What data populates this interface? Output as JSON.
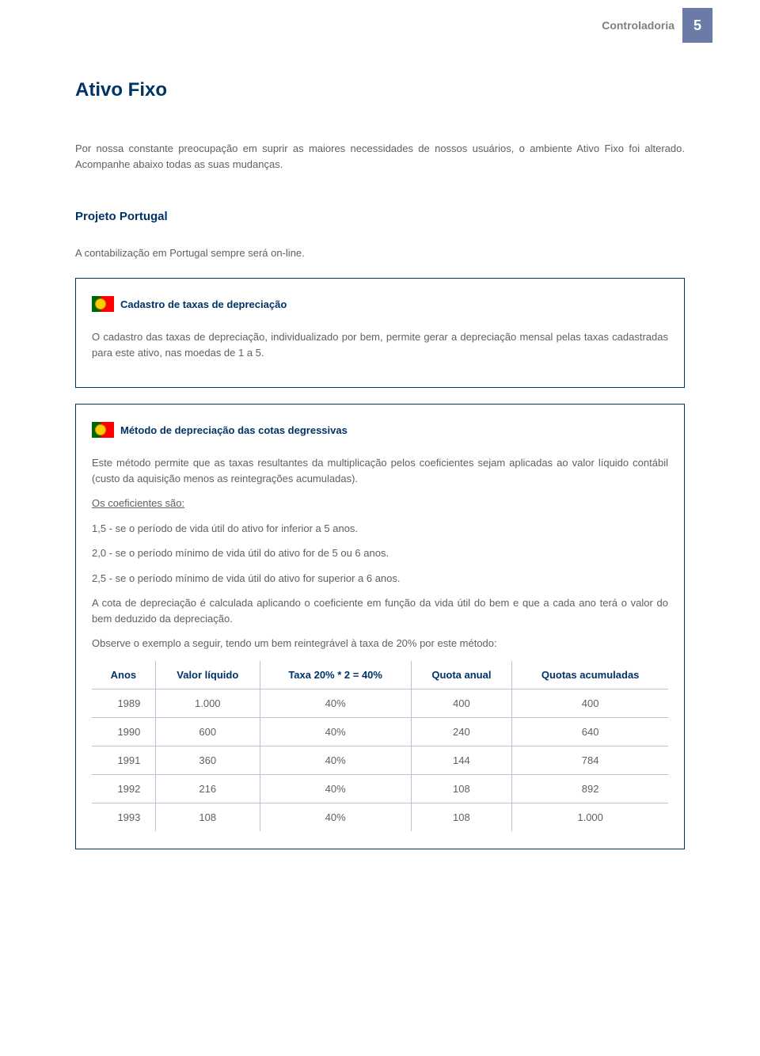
{
  "header": {
    "label": "Controladoria",
    "page_number": "5"
  },
  "title": "Ativo Fixo",
  "intro": "Por nossa constante preocupação em suprir as maiores necessidades de nossos usuários, o ambiente Ativo Fixo foi alterado. Acompanhe abaixo todas as suas mudanças.",
  "section_title": "Projeto Portugal",
  "section_sub": "A contabilização em Portugal sempre será on-line.",
  "box1": {
    "title": "Cadastro de taxas de depreciação",
    "body": "O cadastro das taxas de depreciação, individualizado por bem, permite gerar a depreciação mensal pelas taxas cadastradas para este ativo, nas moedas de 1 a 5."
  },
  "box2": {
    "title": "Método de depreciação das cotas degressivas",
    "p1": "Este método permite que as taxas resultantes da multiplicação pelos coeficientes sejam aplicadas ao valor líquido contábil (custo da aquisição menos as reintegrações acumuladas).",
    "coef_label": "Os coeficientes são:",
    "c1": "1,5 - se o período de vida útil do ativo for inferior a 5 anos.",
    "c2": "2,0 - se o período mínimo de vida útil do ativo for de 5 ou 6 anos.",
    "c3": "2,5 - se o período mínimo de vida útil do ativo for superior a 6 anos.",
    "p2": "A cota de depreciação é calculada aplicando o coeficiente em função da vida útil do bem e que a cada ano terá o valor do bem deduzido da depreciação.",
    "p3": "Observe o exemplo a seguir, tendo um bem reintegrável à taxa de 20% por este método:"
  },
  "table": {
    "columns": [
      "Anos",
      "Valor líquido",
      "Taxa 20% * 2 = 40%",
      "Quota anual",
      "Quotas acumuladas"
    ],
    "rows": [
      [
        "1989",
        "1.000",
        "40%",
        "400",
        "400"
      ],
      [
        "1990",
        "600",
        "40%",
        "240",
        "640"
      ],
      [
        "1991",
        "360",
        "40%",
        "144",
        "784"
      ],
      [
        "1992",
        "216",
        "40%",
        "108",
        "892"
      ],
      [
        "1993",
        "108",
        "40%",
        "108",
        "1.000"
      ]
    ]
  }
}
